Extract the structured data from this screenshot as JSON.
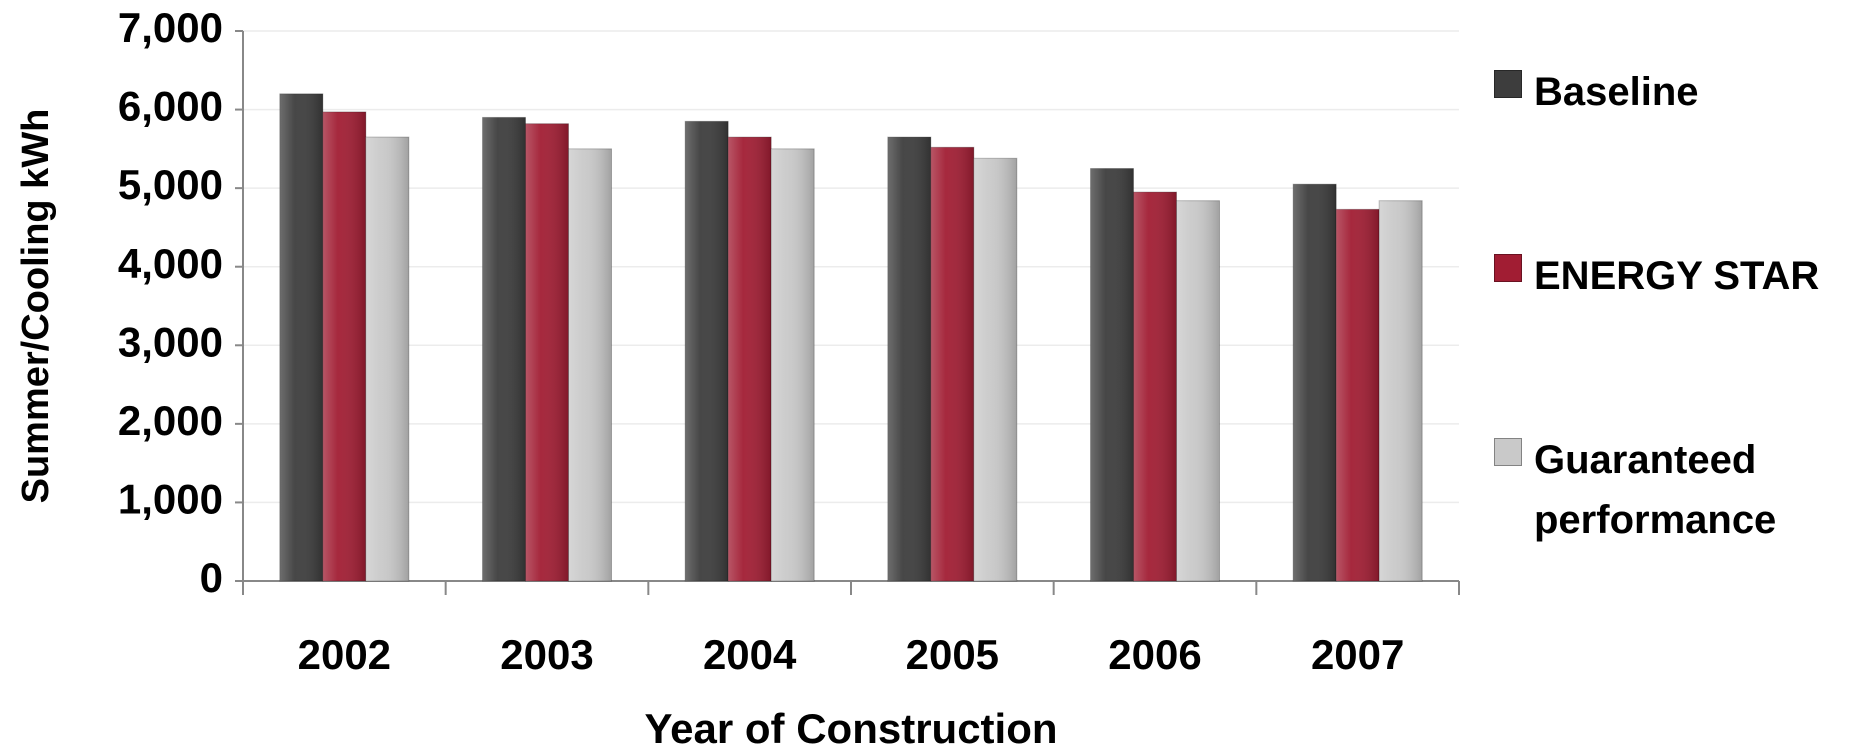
{
  "chart_data": {
    "type": "bar",
    "x_label": "Year of Construction",
    "y_label": "Summer/Cooling kWh",
    "categories": [
      "2002",
      "2003",
      "2004",
      "2005",
      "2006",
      "2007"
    ],
    "series": [
      {
        "name": "Baseline",
        "color": "#3d3d3d",
        "values": [
          6200,
          5900,
          5850,
          5650,
          5250,
          5050
        ]
      },
      {
        "name": "ENERGY STAR",
        "color": "#a11d33",
        "values": [
          5970,
          5820,
          5650,
          5520,
          4950,
          4730
        ]
      },
      {
        "name": "Guaranteed performance",
        "color": "#c9c9c9",
        "values": [
          5650,
          5500,
          5500,
          5380,
          4840,
          4840
        ]
      }
    ],
    "ylim": [
      0,
      7000
    ],
    "yticks": [
      0,
      {
        "value": 1000,
        "label": "1,000"
      },
      {
        "value": 2000,
        "label": "2,000"
      },
      {
        "value": 3000,
        "label": "3,000"
      },
      {
        "value": 4000,
        "label": "4,000"
      },
      {
        "value": 5000,
        "label": "5,000"
      },
      {
        "value": 6000,
        "label": "6,000"
      },
      {
        "value": 7000,
        "label": "7,000"
      }
    ],
    "grid": true
  }
}
